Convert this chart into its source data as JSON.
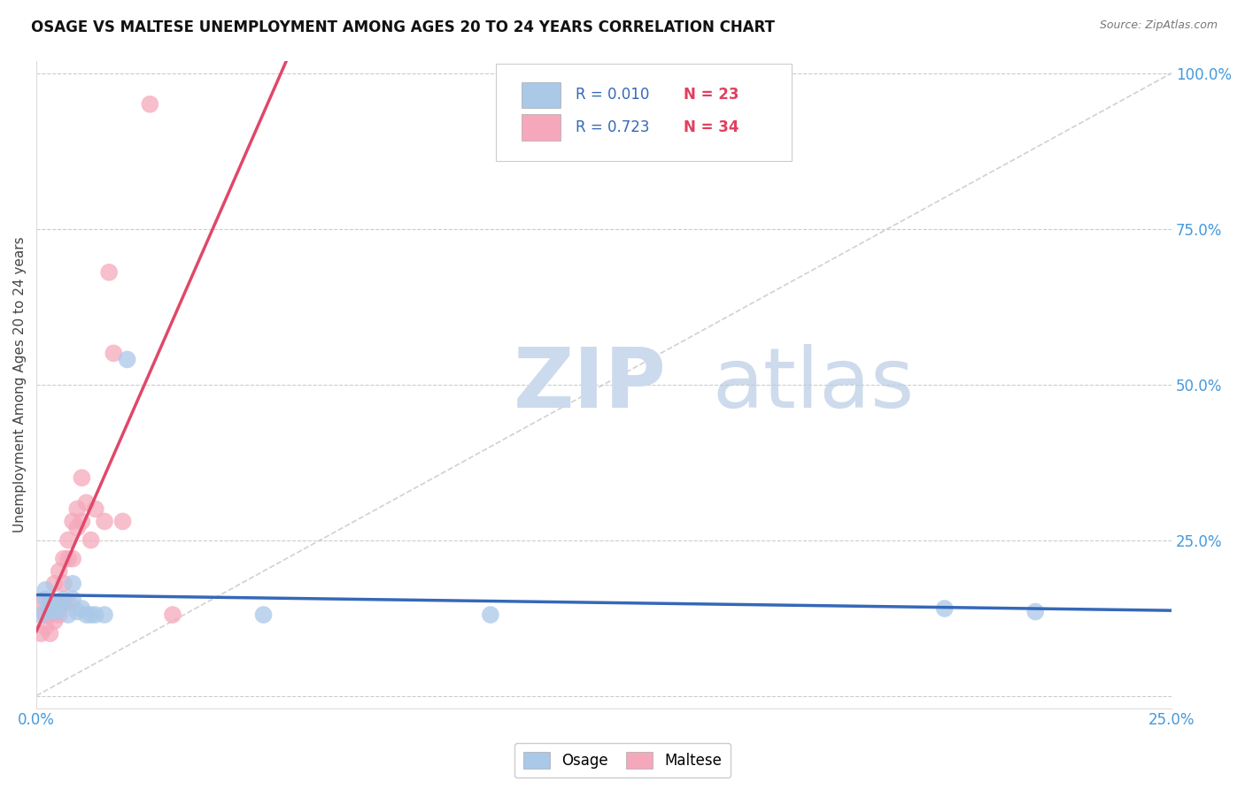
{
  "title": "OSAGE VS MALTESE UNEMPLOYMENT AMONG AGES 20 TO 24 YEARS CORRELATION CHART",
  "source": "Source: ZipAtlas.com",
  "ylabel": "Unemployment Among Ages 20 to 24 years",
  "xlim": [
    0.0,
    0.25
  ],
  "ylim": [
    -0.02,
    1.02
  ],
  "xticks": [
    0.0,
    0.05,
    0.1,
    0.15,
    0.2,
    0.25
  ],
  "yticks": [
    0.0,
    0.25,
    0.5,
    0.75,
    1.0
  ],
  "xticklabels": [
    "0.0%",
    "",
    "",
    "",
    "",
    "25.0%"
  ],
  "yticklabels": [
    "",
    "25.0%",
    "50.0%",
    "75.0%",
    "100.0%"
  ],
  "osage_R": 0.01,
  "osage_N": 23,
  "maltese_R": 0.723,
  "maltese_N": 34,
  "osage_color": "#aac8e8",
  "maltese_color": "#f5a8bc",
  "osage_line_color": "#3568b8",
  "maltese_line_color": "#e04868",
  "ref_line_color": "#cccccc",
  "tick_color": "#4499dd",
  "background_color": "#ffffff",
  "grid_color": "#cccccc",
  "osage_x": [
    0.001,
    0.002,
    0.002,
    0.003,
    0.003,
    0.004,
    0.005,
    0.005,
    0.006,
    0.007,
    0.008,
    0.008,
    0.009,
    0.01,
    0.011,
    0.012,
    0.013,
    0.015,
    0.02,
    0.05,
    0.1,
    0.2,
    0.22
  ],
  "osage_y": [
    0.13,
    0.155,
    0.17,
    0.135,
    0.15,
    0.135,
    0.14,
    0.15,
    0.155,
    0.13,
    0.155,
    0.18,
    0.135,
    0.14,
    0.13,
    0.13,
    0.13,
    0.13,
    0.54,
    0.13,
    0.13,
    0.14,
    0.135
  ],
  "maltese_x": [
    0.001,
    0.001,
    0.002,
    0.002,
    0.003,
    0.003,
    0.003,
    0.004,
    0.004,
    0.004,
    0.005,
    0.005,
    0.005,
    0.006,
    0.006,
    0.006,
    0.007,
    0.007,
    0.007,
    0.008,
    0.008,
    0.009,
    0.009,
    0.01,
    0.01,
    0.011,
    0.012,
    0.013,
    0.015,
    0.016,
    0.017,
    0.019,
    0.025,
    0.03
  ],
  "maltese_y": [
    0.1,
    0.15,
    0.11,
    0.13,
    0.1,
    0.13,
    0.15,
    0.12,
    0.15,
    0.18,
    0.13,
    0.15,
    0.2,
    0.15,
    0.18,
    0.22,
    0.15,
    0.22,
    0.25,
    0.22,
    0.28,
    0.27,
    0.3,
    0.28,
    0.35,
    0.31,
    0.25,
    0.3,
    0.28,
    0.68,
    0.55,
    0.28,
    0.95,
    0.13
  ]
}
